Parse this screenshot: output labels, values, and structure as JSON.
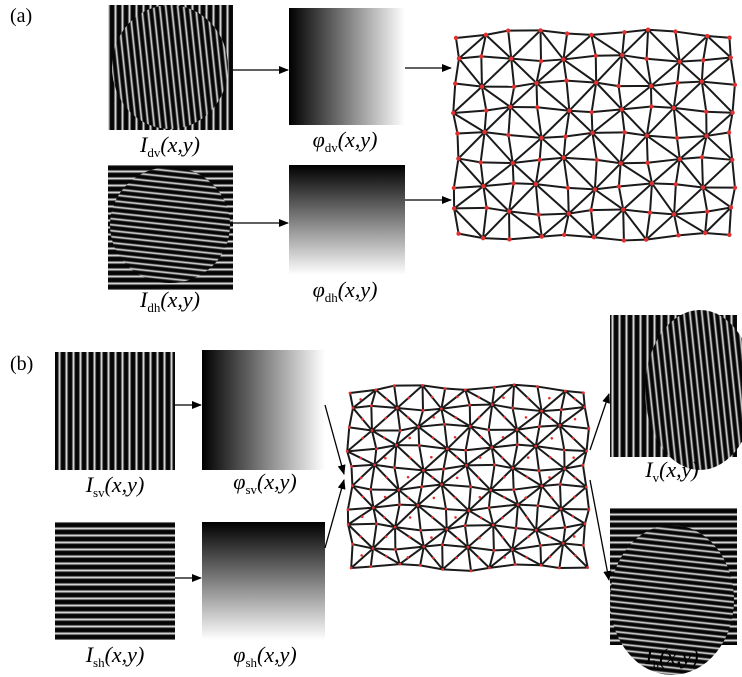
{
  "panel_labels": [
    "(a)",
    "(b)"
  ],
  "labels": [
    {
      "symbol": "I",
      "sub": "dv",
      "args": "(x,y)"
    },
    {
      "symbol": "φ",
      "sub": "dv",
      "args": "(x,y)"
    },
    {
      "symbol": "I",
      "sub": "dh",
      "args": "(x,y)"
    },
    {
      "symbol": "φ",
      "sub": "dh",
      "args": "(x,y)"
    },
    {
      "symbol": "I",
      "sub": "sv",
      "args": "(x,y)"
    },
    {
      "symbol": "φ",
      "sub": "sv",
      "args": "(x,y)"
    },
    {
      "symbol": "I",
      "sub": "sh",
      "args": "(x,y)"
    },
    {
      "symbol": "φ",
      "sub": "sh",
      "args": "(x,y)"
    },
    {
      "symbol": "I",
      "sub": "v",
      "args": "(x,y)"
    },
    {
      "symbol": "I",
      "sub": "h",
      "args": "(x,y)"
    }
  ]
}
